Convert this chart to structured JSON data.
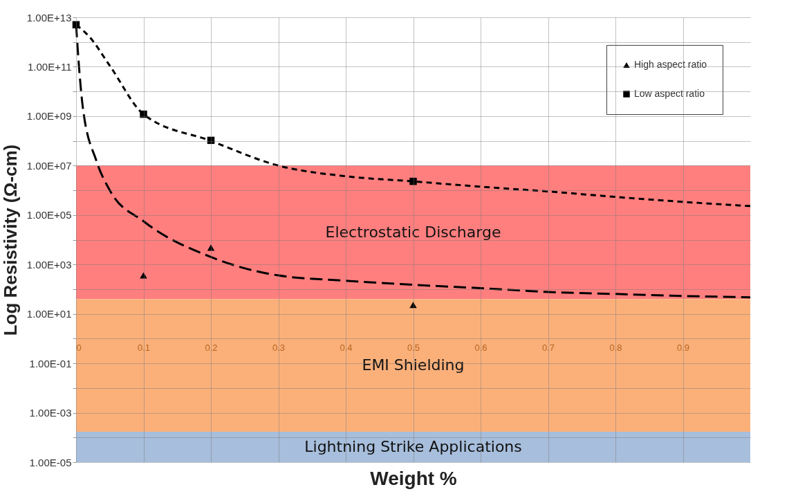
{
  "chart_data": {
    "type": "scatter",
    "xlabel": "Weight %",
    "ylabel": "Log Resistivity (Ω-cm)",
    "log": "y",
    "grid": true,
    "legend": "top right",
    "xlim": [
      0,
      1
    ],
    "xticks": [
      0,
      0.1,
      0.2,
      0.3,
      0.4,
      0.5,
      0.6,
      0.7,
      0.8,
      0.9
    ],
    "ylim": [
      1e-05,
      10000000000000.0
    ],
    "yticks": [
      {
        "value": 1e-05,
        "label": "1.00E-05"
      },
      {
        "value": 0.0001,
        "label": null
      },
      {
        "value": 0.001,
        "label": "1.00E-03"
      },
      {
        "value": 0.01,
        "label": null
      },
      {
        "value": 0.1,
        "label": "1.00E-01"
      },
      {
        "value": 1,
        "label": null
      },
      {
        "value": 10,
        "label": "1.00E+01"
      },
      {
        "value": 100,
        "label": null
      },
      {
        "value": 1000,
        "label": "1.00E+03"
      },
      {
        "value": 10000.0,
        "label": null
      },
      {
        "value": 100000.0,
        "label": "1.00E+05"
      },
      {
        "value": 1000000.0,
        "label": null
      },
      {
        "value": 10000000.0,
        "label": "1.00E+07"
      },
      {
        "value": 100000000.0,
        "label": null
      },
      {
        "value": 1000000000.0,
        "label": "1.00E+09"
      },
      {
        "value": 10000000000.0,
        "label": null
      },
      {
        "value": 100000000000.0,
        "label": "1.00E+11"
      },
      {
        "value": 1000000000000.0,
        "label": null
      },
      {
        "value": 10000000000000.0,
        "label": "1.00E+13"
      }
    ],
    "bands": [
      {
        "axis": "y",
        "from": 40,
        "to": 10000000.0,
        "label": "Electrostatic Discharge",
        "color": "#ff7f7f"
      },
      {
        "axis": "y",
        "from": 0.00017,
        "to": 40,
        "label": "EMI Shielding",
        "color": "#fbb07a"
      },
      {
        "axis": "y",
        "from": 1e-05,
        "to": 0.00017,
        "label": "Lightning Strike Applications",
        "color": "#a7bedc"
      }
    ],
    "series": [
      {
        "type": "line",
        "line_style": "dashed",
        "color": "#000000",
        "x": [
          0,
          0.02,
          0.05,
          0.1,
          0.2,
          0.3,
          0.4,
          0.5,
          0.6,
          0.7,
          0.8,
          0.9,
          1
        ],
        "values": [
          5000000000000.0,
          1600000000000.0,
          110000000000.0,
          1200000000.0,
          100000000.0,
          10000000.0,
          3700000.0,
          2300000.0,
          1400000.0,
          900000.0,
          540000.0,
          340000.0,
          230000.0
        ]
      },
      {
        "type": "line",
        "line_style": "dashed",
        "color": "#000000",
        "x": [
          0,
          0.005,
          0.01,
          0.03,
          0.05,
          0.1,
          0.2,
          0.3,
          0.4,
          0.5,
          0.6,
          0.7,
          0.8,
          0.9,
          1
        ],
        "values": [
          5000000000000.0,
          60000000000.0,
          2300000000.0,
          16000000.0,
          1000000.0,
          56000.0,
          2000.0,
          360.0,
          220.0,
          150.0,
          110.0,
          77,
          64,
          53,
          47
        ]
      },
      {
        "name": "High aspect ratio",
        "marker": "triangle",
        "color": "#000000",
        "x": [
          0.1,
          0.2,
          0.5
        ],
        "values": [
          360,
          4800.0,
          23
        ]
      },
      {
        "name": "Low aspect ratio",
        "marker": "square",
        "color": "#000000",
        "x": [
          0,
          0.1,
          0.2,
          0.5
        ],
        "values": [
          5000000000000.0,
          1200000000.0,
          105000000.0,
          2300000.0
        ]
      }
    ]
  }
}
